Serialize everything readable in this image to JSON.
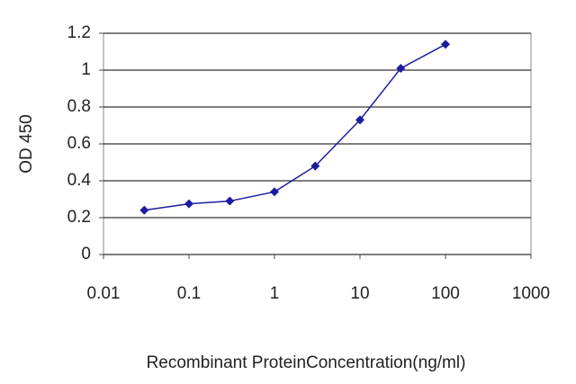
{
  "chart_data": {
    "type": "line",
    "x_label": "Recombinant ProteinConcentration(ng/ml)",
    "y_label": "OD 450",
    "x": [
      0.03,
      0.1,
      0.3,
      1,
      3,
      10,
      30,
      100
    ],
    "series": [
      {
        "color": "#1c1ca0",
        "values": [
          0.24,
          0.275,
          0.29,
          0.34,
          0.48,
          0.73,
          1.01,
          1.14
        ]
      }
    ],
    "xlim": [
      0.01,
      1000
    ],
    "xticks": [
      0.01,
      0.1,
      1,
      10,
      100,
      1000
    ],
    "xscale": "log",
    "ylim": [
      0,
      1.2
    ],
    "yticks": [
      0,
      0.2,
      0.4,
      0.6,
      0.8,
      1,
      1.2
    ],
    "grid": true
  }
}
